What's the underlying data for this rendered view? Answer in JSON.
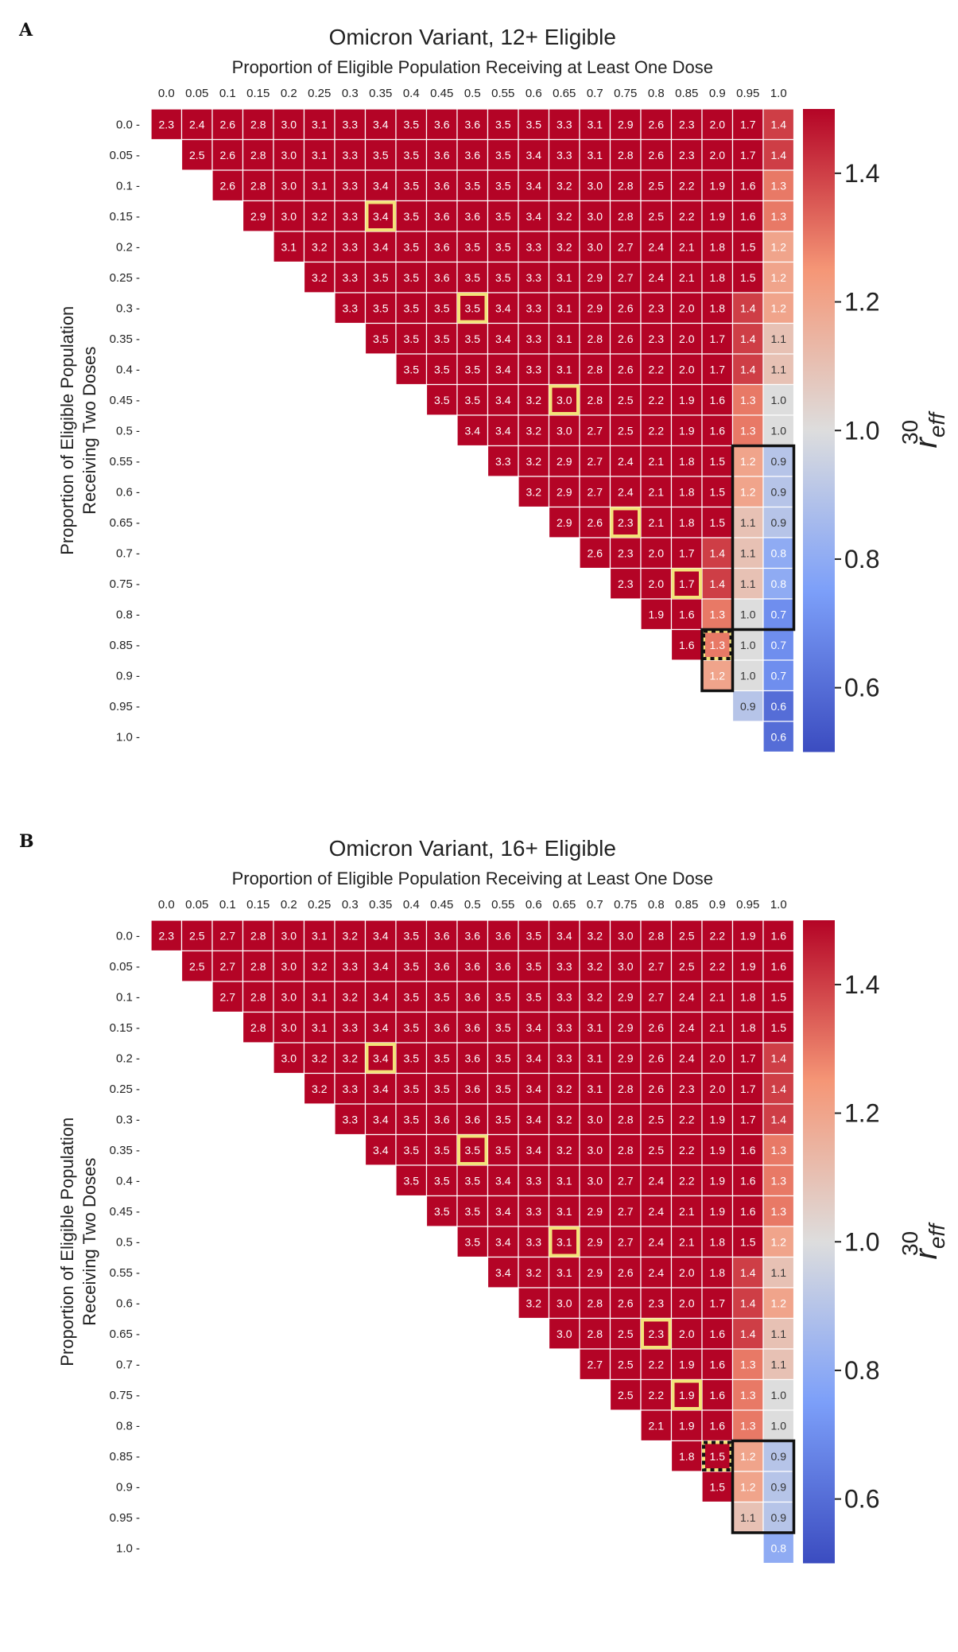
{
  "chart_data": [
    {
      "panel_label": "A",
      "type": "heatmap",
      "title": "Omicron Variant, 12+ Eligible",
      "xlabel": "Proportion of Eligible Population Receiving at Least One Dose",
      "ylabel_line1": "Proportion of Eligible Population",
      "ylabel_line2": "Receiving Two Doses",
      "colorbar_label": "r_eff^30",
      "colorbar_range": [
        0.5,
        1.5
      ],
      "colorbar_ticks": [
        "1.4",
        "1.2",
        "1.0",
        "0.8",
        "0.6"
      ],
      "x_ticks": [
        "0.0",
        "0.05",
        "0.1",
        "0.15",
        "0.2",
        "0.25",
        "0.3",
        "0.35",
        "0.4",
        "0.45",
        "0.5",
        "0.55",
        "0.6",
        "0.65",
        "0.7",
        "0.75",
        "0.8",
        "0.85",
        "0.9",
        "0.95",
        "1.0"
      ],
      "y_ticks": [
        "0.0",
        "0.05",
        "0.1",
        "0.15",
        "0.2",
        "0.25",
        "0.3",
        "0.35",
        "0.4",
        "0.45",
        "0.5",
        "0.55",
        "0.6",
        "0.65",
        "0.7",
        "0.75",
        "0.8",
        "0.85",
        "0.9",
        "0.95",
        "1.0"
      ],
      "rows": [
        [
          2.3,
          2.4,
          2.6,
          2.8,
          3.0,
          3.1,
          3.3,
          3.4,
          3.5,
          3.6,
          3.6,
          3.5,
          3.5,
          3.3,
          3.1,
          2.9,
          2.6,
          2.3,
          2.0,
          1.7,
          1.4
        ],
        [
          2.5,
          2.6,
          2.8,
          3.0,
          3.1,
          3.3,
          3.5,
          3.5,
          3.6,
          3.6,
          3.5,
          3.4,
          3.3,
          3.1,
          2.8,
          2.6,
          2.3,
          2.0,
          1.7,
          1.4
        ],
        [
          2.6,
          2.8,
          3.0,
          3.1,
          3.3,
          3.4,
          3.5,
          3.6,
          3.5,
          3.5,
          3.4,
          3.2,
          3.0,
          2.8,
          2.5,
          2.2,
          1.9,
          1.6,
          1.3
        ],
        [
          2.9,
          3.0,
          3.2,
          3.3,
          3.4,
          3.5,
          3.6,
          3.6,
          3.5,
          3.4,
          3.2,
          3.0,
          2.8,
          2.5,
          2.2,
          1.9,
          1.6,
          1.3
        ],
        [
          3.1,
          3.2,
          3.3,
          3.4,
          3.5,
          3.6,
          3.5,
          3.5,
          3.3,
          3.2,
          3.0,
          2.7,
          2.4,
          2.1,
          1.8,
          1.5,
          1.2
        ],
        [
          3.2,
          3.3,
          3.5,
          3.5,
          3.6,
          3.5,
          3.5,
          3.3,
          3.1,
          2.9,
          2.7,
          2.4,
          2.1,
          1.8,
          1.5,
          1.2
        ],
        [
          3.3,
          3.5,
          3.5,
          3.5,
          3.5,
          3.4,
          3.3,
          3.1,
          2.9,
          2.6,
          2.3,
          2.0,
          1.8,
          1.4,
          1.2
        ],
        [
          3.5,
          3.5,
          3.5,
          3.5,
          3.4,
          3.3,
          3.1,
          2.8,
          2.6,
          2.3,
          2.0,
          1.7,
          1.4,
          1.1
        ],
        [
          3.5,
          3.5,
          3.5,
          3.4,
          3.3,
          3.1,
          2.8,
          2.6,
          2.2,
          2.0,
          1.7,
          1.4,
          1.1
        ],
        [
          3.5,
          3.5,
          3.4,
          3.2,
          3.0,
          2.8,
          2.5,
          2.2,
          1.9,
          1.6,
          1.3,
          1.0
        ],
        [
          3.4,
          3.4,
          3.2,
          3.0,
          2.7,
          2.5,
          2.2,
          1.9,
          1.6,
          1.3,
          1.0
        ],
        [
          3.3,
          3.2,
          2.9,
          2.7,
          2.4,
          2.1,
          1.8,
          1.5,
          1.2,
          0.9
        ],
        [
          3.2,
          2.9,
          2.7,
          2.4,
          2.1,
          1.8,
          1.5,
          1.2,
          0.9
        ],
        [
          2.9,
          2.6,
          2.3,
          2.1,
          1.8,
          1.5,
          1.1,
          0.9
        ],
        [
          2.6,
          2.3,
          2.0,
          1.7,
          1.4,
          1.1,
          0.8
        ],
        [
          2.3,
          2.0,
          1.7,
          1.4,
          1.1,
          0.8
        ],
        [
          1.9,
          1.6,
          1.3,
          1.0,
          0.7
        ],
        [
          1.6,
          1.3,
          1.0,
          0.7
        ],
        [
          1.2,
          1.0,
          0.7
        ],
        [
          0.9,
          0.6
        ],
        [
          0.6
        ]
      ],
      "highlights": [
        [
          3,
          7
        ],
        [
          6,
          10
        ],
        [
          9,
          13
        ],
        [
          13,
          15
        ],
        [
          15,
          17
        ]
      ],
      "dotted_highlight": [
        17,
        18
      ],
      "black_outline": [
        [
          11,
          21
        ],
        [
          11,
          19
        ],
        [
          19,
          19
        ],
        [
          19,
          18
        ],
        [
          17,
          18
        ],
        [
          17,
          21
        ]
      ]
    },
    {
      "panel_label": "B",
      "type": "heatmap",
      "title": "Omicron Variant, 16+ Eligible",
      "xlabel": "Proportion of Eligible Population Receiving at Least One Dose",
      "ylabel_line1": "Proportion of Eligible Population",
      "ylabel_line2": "Receiving Two Doses",
      "colorbar_label": "r_eff^30",
      "colorbar_range": [
        0.5,
        1.5
      ],
      "colorbar_ticks": [
        "1.4",
        "1.2",
        "1.0",
        "0.8",
        "0.6"
      ],
      "x_ticks": [
        "0.0",
        "0.05",
        "0.1",
        "0.15",
        "0.2",
        "0.25",
        "0.3",
        "0.35",
        "0.4",
        "0.45",
        "0.5",
        "0.55",
        "0.6",
        "0.65",
        "0.7",
        "0.75",
        "0.8",
        "0.85",
        "0.9",
        "0.95",
        "1.0"
      ],
      "y_ticks": [
        "0.0",
        "0.05",
        "0.1",
        "0.15",
        "0.2",
        "0.25",
        "0.3",
        "0.35",
        "0.4",
        "0.45",
        "0.5",
        "0.55",
        "0.6",
        "0.65",
        "0.7",
        "0.75",
        "0.8",
        "0.85",
        "0.9",
        "0.95",
        "1.0"
      ],
      "rows": [
        [
          2.3,
          2.5,
          2.7,
          2.8,
          3.0,
          3.1,
          3.2,
          3.4,
          3.5,
          3.6,
          3.6,
          3.6,
          3.5,
          3.4,
          3.2,
          3.0,
          2.8,
          2.5,
          2.2,
          1.9,
          1.6
        ],
        [
          2.5,
          2.7,
          2.8,
          3.0,
          3.2,
          3.3,
          3.4,
          3.5,
          3.6,
          3.6,
          3.6,
          3.5,
          3.3,
          3.2,
          3.0,
          2.7,
          2.5,
          2.2,
          1.9,
          1.6
        ],
        [
          2.7,
          2.8,
          3.0,
          3.1,
          3.2,
          3.4,
          3.5,
          3.5,
          3.6,
          3.5,
          3.5,
          3.3,
          3.2,
          2.9,
          2.7,
          2.4,
          2.1,
          1.8,
          1.5
        ],
        [
          2.8,
          3.0,
          3.1,
          3.3,
          3.4,
          3.5,
          3.6,
          3.6,
          3.5,
          3.4,
          3.3,
          3.1,
          2.9,
          2.6,
          2.4,
          2.1,
          1.8,
          1.5
        ],
        [
          3.0,
          3.2,
          3.2,
          3.4,
          3.5,
          3.5,
          3.6,
          3.5,
          3.4,
          3.3,
          3.1,
          2.9,
          2.6,
          2.4,
          2.0,
          1.7,
          1.4
        ],
        [
          3.2,
          3.3,
          3.4,
          3.5,
          3.5,
          3.6,
          3.5,
          3.4,
          3.2,
          3.1,
          2.8,
          2.6,
          2.3,
          2.0,
          1.7,
          1.4
        ],
        [
          3.3,
          3.4,
          3.5,
          3.6,
          3.6,
          3.5,
          3.4,
          3.2,
          3.0,
          2.8,
          2.5,
          2.2,
          1.9,
          1.7,
          1.4
        ],
        [
          3.4,
          3.5,
          3.5,
          3.5,
          3.5,
          3.4,
          3.2,
          3.0,
          2.8,
          2.5,
          2.2,
          1.9,
          1.6,
          1.3
        ],
        [
          3.5,
          3.5,
          3.5,
          3.4,
          3.3,
          3.1,
          3.0,
          2.7,
          2.4,
          2.2,
          1.9,
          1.6,
          1.3
        ],
        [
          3.5,
          3.5,
          3.4,
          3.3,
          3.1,
          2.9,
          2.7,
          2.4,
          2.1,
          1.9,
          1.6,
          1.3
        ],
        [
          3.5,
          3.4,
          3.3,
          3.1,
          2.9,
          2.7,
          2.4,
          2.1,
          1.8,
          1.5,
          1.2
        ],
        [
          3.4,
          3.2,
          3.1,
          2.9,
          2.6,
          2.4,
          2.0,
          1.8,
          1.4,
          1.1
        ],
        [
          3.2,
          3.0,
          2.8,
          2.6,
          2.3,
          2.0,
          1.7,
          1.4,
          1.2
        ],
        [
          3.0,
          2.8,
          2.5,
          2.3,
          2.0,
          1.6,
          1.4,
          1.1
        ],
        [
          2.7,
          2.5,
          2.2,
          1.9,
          1.6,
          1.3,
          1.1
        ],
        [
          2.5,
          2.2,
          1.9,
          1.6,
          1.3,
          1.0
        ],
        [
          2.1,
          1.9,
          1.6,
          1.3,
          1.0
        ],
        [
          1.8,
          1.5,
          1.2,
          0.9
        ],
        [
          1.5,
          1.2,
          0.9
        ],
        [
          1.1,
          0.9
        ],
        [
          0.8
        ]
      ],
      "highlights": [
        [
          4,
          7
        ],
        [
          7,
          10
        ],
        [
          10,
          13
        ],
        [
          13,
          16
        ],
        [
          15,
          17
        ]
      ],
      "dotted_highlight": [
        17,
        18
      ],
      "black_outline": [
        [
          17,
          19
        ],
        [
          17,
          21
        ],
        [
          20,
          21
        ],
        [
          20,
          19
        ]
      ]
    }
  ]
}
